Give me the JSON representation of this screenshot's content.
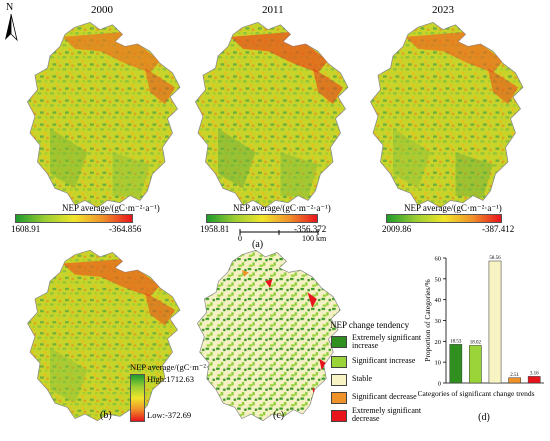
{
  "years": [
    "2000",
    "2011",
    "2023"
  ],
  "colorbars": [
    {
      "title": "NEP average/(gC·m⁻²·a⁻¹)",
      "min_label": "1608.91",
      "max_label": "-364.856"
    },
    {
      "title": "NEP average/(gC·m⁻²·a⁻¹)",
      "min_label": "1958.81",
      "max_label": "-356.372"
    },
    {
      "title": "NEP average/(gC·m⁻²·a⁻¹)",
      "min_label": "2009.86",
      "max_label": "-387.412"
    }
  ],
  "scale_bar": {
    "start": "0",
    "end": "100 km"
  },
  "north": "N",
  "panels": {
    "a": "(a)",
    "b": "(b)",
    "c": "(c)",
    "d": "(d)"
  },
  "legend_b": {
    "title": "NEP average/(gC·m⁻²·a⁻¹)",
    "high": "High:1712.63",
    "low": "Low:-372.69"
  },
  "legend_c": {
    "title": "NEP change tendency",
    "items": [
      {
        "label": "Extremely significant increase",
        "color": "#2f8f1f"
      },
      {
        "label": "Significant increase",
        "color": "#9ad438"
      },
      {
        "label": "Stable",
        "color": "#f7f3c3"
      },
      {
        "label": "Significant decrease",
        "color": "#f0922a"
      },
      {
        "label": "Extremely significant decrease",
        "color": "#e8141c"
      }
    ]
  },
  "chart_data": {
    "type": "bar",
    "categories": [
      "Extremely significant increase",
      "Significant increase",
      "Stable",
      "Significant decrease",
      "Extremely significant decrease"
    ],
    "values": [
      18.53,
      18.02,
      58.56,
      2.51,
      3.16
    ],
    "data_labels": [
      "18.53",
      "18.02",
      "58.56",
      "2.51",
      "3.16"
    ],
    "colors": [
      "#2f8f1f",
      "#9ad438",
      "#f7f3c3",
      "#f0922a",
      "#e8141c"
    ],
    "xlabel": "Categories of significant change trends",
    "ylabel": "Proportion of Categories/%",
    "ylim": [
      0,
      60
    ],
    "yticks": [
      0,
      10,
      20,
      30,
      40,
      50,
      60
    ],
    "grid": false
  }
}
